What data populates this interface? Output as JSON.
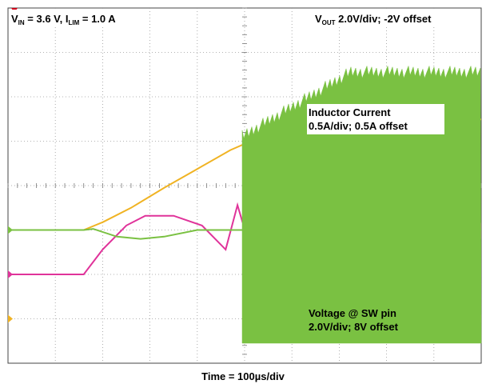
{
  "chart_data": {
    "type": "line",
    "title": "",
    "xlabel": "Time = 100µs/div",
    "x_unit": "µs",
    "x_range": [
      0,
      1000
    ],
    "grid": {
      "x_divisions": 10,
      "y_divisions": 8
    },
    "annotations": {
      "conditions": {
        "v_main": "V",
        "v_sub": "IN",
        "v_text": " = 3.6 V, I",
        "i_sub": "LIM",
        "i_text": " = 1.0 A"
      },
      "vout": {
        "main": "V",
        "sub": "OUT",
        "text": " 2.0V/div; -2V offset"
      },
      "inductor_line1": "Inductor Current",
      "inductor_line2": "0.5A/div; 0.5A offset",
      "sw_line1": "Voltage @ SW pin",
      "sw_line2": "2.0V/div; 8V offset"
    },
    "series": [
      {
        "name": "VOUT",
        "color": "#f0b323",
        "unit": "V",
        "x": [
          0,
          160,
          200,
          260,
          330,
          400,
          470,
          540,
          600,
          660,
          720,
          800,
          900,
          1000
        ],
        "y": [
          2.0,
          2.0,
          2.35,
          3.0,
          3.9,
          4.75,
          5.6,
          6.25,
          6.6,
          6.8,
          6.93,
          6.97,
          6.98,
          6.98
        ]
      },
      {
        "name": "Inductor Current",
        "color": "#e0339a",
        "unit": "A",
        "x": [
          0,
          160,
          200,
          250,
          290,
          350,
          410,
          460,
          485,
          495,
          510,
          525,
          530,
          550,
          600,
          700,
          800,
          1000
        ],
        "y": [
          0.5,
          0.5,
          0.78,
          1.05,
          1.16,
          1.16,
          1.05,
          0.78,
          1.28,
          1.1,
          1.24,
          0.7,
          1.22,
          1.04,
          0.99,
          0.99,
          0.99,
          0.99
        ]
      },
      {
        "name": "Voltage @ SW pin",
        "color": "#7ac142",
        "unit": "V",
        "x": [
          0,
          160,
          180,
          230,
          280,
          330,
          400,
          450,
          490,
          495,
          1000
        ],
        "y": [
          8.0,
          8.0,
          8.05,
          7.7,
          7.6,
          7.7,
          8.0,
          8.0,
          8.0,
          8.0,
          8.0
        ],
        "switching": {
          "from_x": 495,
          "high_v": [
            11.9,
            14.8
          ],
          "low_v": 2.9
        }
      }
    ]
  }
}
